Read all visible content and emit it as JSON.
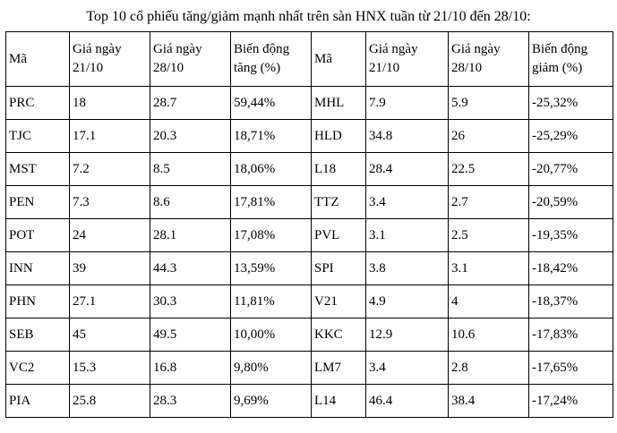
{
  "title": "Top 10 cổ phiếu tăng/giảm mạnh nhất trên sàn HNX tuần từ 21/10 đến 28/10:",
  "table": {
    "headers": [
      "Mã",
      "Giá ngày 21/10",
      "Giá ngày 28/10",
      "Biến động tăng (%)",
      "Mã",
      "Giá ngày 21/10",
      "Giá ngày 28/10",
      "Biến động giảm (%)"
    ],
    "rows": [
      [
        "PRC",
        "18",
        "28.7",
        "59,44%",
        "MHL",
        "7.9",
        "5.9",
        "-25,32%"
      ],
      [
        "TJC",
        "17.1",
        "20.3",
        "18,71%",
        "HLD",
        "34.8",
        "26",
        "-25,29%"
      ],
      [
        "MST",
        "7.2",
        "8.5",
        "18,06%",
        "L18",
        "28.4",
        "22.5",
        "-20,77%"
      ],
      [
        "PEN",
        "7.3",
        "8.6",
        "17,81%",
        "TTZ",
        "3.4",
        "2.7",
        "-20,59%"
      ],
      [
        "POT",
        "24",
        "28.1",
        "17,08%",
        "PVL",
        "3.1",
        "2.5",
        "-19,35%"
      ],
      [
        "INN",
        "39",
        "44.3",
        "13,59%",
        "SPI",
        "3.8",
        "3.1",
        "-18,42%"
      ],
      [
        "PHN",
        "27.1",
        "30.3",
        "11,81%",
        "V21",
        "4.9",
        "4",
        "-18,37%"
      ],
      [
        "SEB",
        "45",
        "49.5",
        "10,00%",
        "KKC",
        "12.9",
        "10.6",
        "-17,83%"
      ],
      [
        "VC2",
        "15.3",
        "16.8",
        "9,80%",
        "LM7",
        "3.4",
        "2.8",
        "-17,65%"
      ],
      [
        "PIA",
        "25.8",
        "28.3",
        "9,69%",
        "L14",
        "46.4",
        "38.4",
        "-17,24%"
      ]
    ]
  }
}
